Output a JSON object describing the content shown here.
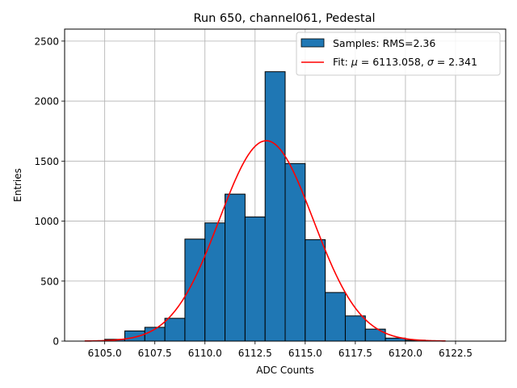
{
  "chart_data": {
    "type": "bar",
    "title": "Run 650, channel061, Pedestal",
    "xlabel": "ADC Counts",
    "ylabel": "Entries",
    "xlim": [
      6103.0,
      6125.0
    ],
    "ylim": [
      0,
      2600
    ],
    "xticks": [
      6105.0,
      6107.5,
      6110.0,
      6112.5,
      6115.0,
      6117.5,
      6120.0,
      6122.5
    ],
    "xtick_labels": [
      "6105.0",
      "6107.5",
      "6110.0",
      "6112.5",
      "6115.0",
      "6117.5",
      "6120.0",
      "6122.5"
    ],
    "yticks": [
      0,
      500,
      1000,
      1500,
      2000,
      2500
    ],
    "ytick_labels": [
      "0",
      "500",
      "1000",
      "1500",
      "2000",
      "2500"
    ],
    "grid": true,
    "legend_position": "top-right",
    "series": [
      {
        "name": "Samples: RMS=2.36",
        "kind": "histogram",
        "color": "#1f77b4",
        "edgecolor": "#000000",
        "bin_edges": [
          6105,
          6106,
          6107,
          6108,
          6109,
          6110,
          6111,
          6112,
          6113,
          6114,
          6115,
          6116,
          6117,
          6118,
          6119,
          6120,
          6121
        ],
        "counts": [
          15,
          85,
          115,
          190,
          850,
          985,
          1225,
          1035,
          2245,
          1480,
          845,
          405,
          210,
          100,
          25,
          8
        ]
      },
      {
        "name": "Fit: μ = 6113.058, σ = 2.341",
        "kind": "gaussian-fit",
        "color": "#ff0000",
        "mu": 6113.058,
        "sigma": 2.341,
        "amplitude": 1670,
        "x_range": [
          6104.0,
          6122.0
        ]
      }
    ],
    "legend": [
      {
        "label": "Samples: RMS=2.36",
        "swatch": "patch"
      },
      {
        "label_prefix": "Fit: ",
        "mu_symbol": "μ",
        "mu_text": " = 6113.058, ",
        "sigma_symbol": "σ",
        "sigma_text": " = 2.341",
        "swatch": "line"
      }
    ]
  }
}
